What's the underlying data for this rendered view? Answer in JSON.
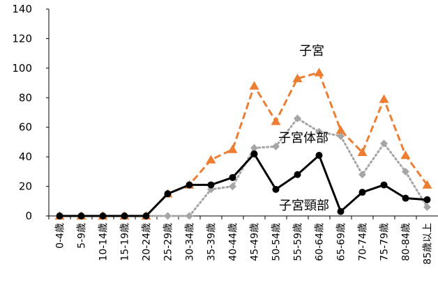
{
  "chart_data": {
    "type": "line",
    "categories": [
      "0-4歳",
      "5-9歳",
      "10-14歳",
      "15-19歳",
      "20-24歳",
      "25-29歳",
      "30-34歳",
      "35-39歳",
      "40-44歳",
      "45-49歳",
      "50-54歳",
      "55-59歳",
      "60-64歳",
      "65-69歳",
      "70-74歳",
      "75-79歳",
      "80-84歳",
      "85歳以上"
    ],
    "ylim": [
      0,
      140
    ],
    "yticks": [
      0,
      20,
      40,
      60,
      80,
      100,
      120,
      140
    ],
    "grid": false,
    "legend": "none",
    "series": [
      {
        "name": "子宮",
        "color": "#ED7D31",
        "marker": "triangle",
        "dash": "dashed",
        "values": [
          0,
          0,
          0,
          0,
          0,
          15,
          21,
          38,
          45,
          88,
          64,
          93,
          97,
          58,
          43,
          79,
          41,
          21
        ]
      },
      {
        "name": "子宮体部",
        "color": "#A5A5A5",
        "marker": "diamond",
        "dash": "dotted",
        "values": [
          0,
          0,
          0,
          0,
          0,
          0,
          0,
          18,
          20,
          46,
          47,
          66,
          57,
          54,
          28,
          49,
          30,
          6
        ]
      },
      {
        "name": "子宮頸部",
        "color": "#000000",
        "marker": "circle",
        "dash": "solid",
        "values": [
          0,
          0,
          0,
          0,
          0,
          15,
          21,
          21,
          26,
          42,
          18,
          28,
          41,
          3,
          16,
          21,
          12,
          11
        ]
      }
    ]
  }
}
